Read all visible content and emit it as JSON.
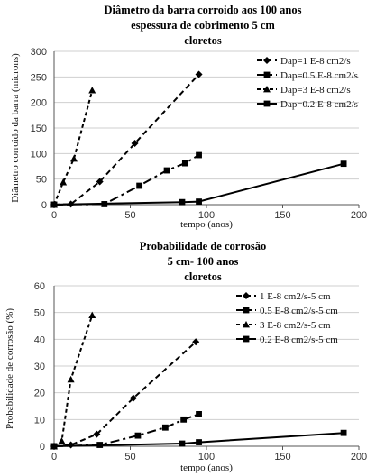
{
  "chart_data": [
    {
      "type": "line",
      "title": [
        "Diâmetro da barra corroido aos 100 anos",
        "espessura de cobrimento 5 cm",
        "cloretos"
      ],
      "xlabel": "tempo (anos)",
      "ylabel": "Diâmetro corroido da barra (microns)",
      "xlim": [
        0,
        200
      ],
      "ylim": [
        0,
        300
      ],
      "xticks": [
        0,
        50,
        100,
        150,
        200
      ],
      "yticks": [
        0,
        50,
        100,
        150,
        200,
        250,
        300
      ],
      "grid": "horizontal",
      "legend_position": "top-right",
      "series": [
        {
          "name": "Dap=1 E-8 cm2/s",
          "marker": "diamond",
          "dash": "6,4",
          "x": [
            0,
            11,
            30,
            53,
            95
          ],
          "y": [
            0,
            1,
            45,
            120,
            255
          ]
        },
        {
          "name": "Dap=0.5 E-8 cm2/s",
          "marker": "square",
          "dash": "10,4,3,4",
          "x": [
            0,
            33,
            56,
            74,
            86,
            95
          ],
          "y": [
            0,
            1,
            37,
            67,
            81,
            97
          ]
        },
        {
          "name": "Dap=3 E-8 cm2/s",
          "marker": "triangle",
          "dash": "4,3",
          "x": [
            0,
            6,
            13,
            25
          ],
          "y": [
            0,
            44,
            90,
            224
          ]
        },
        {
          "name": "Dap=0.2 E-8 cm2/s",
          "marker": "square",
          "dash": "",
          "x": [
            0,
            84,
            95,
            190
          ],
          "y": [
            0,
            5,
            6,
            80
          ]
        }
      ]
    },
    {
      "type": "line",
      "title": [
        "Probabilidade de corrosão",
        "5 cm- 100 anos",
        "cloretos"
      ],
      "xlabel": "tempo (anos)",
      "ylabel": "Probabilidade de corrosão (%)",
      "xlim": [
        0,
        200
      ],
      "ylim": [
        0,
        60
      ],
      "xticks": [
        0,
        50,
        100,
        150,
        200
      ],
      "yticks": [
        0,
        10,
        20,
        30,
        40,
        50,
        60
      ],
      "grid": "horizontal",
      "legend_position": "top-right",
      "series": [
        {
          "name": "1 E-8 cm2/s-5 cm",
          "marker": "diamond",
          "dash": "6,4",
          "x": [
            0,
            11,
            28,
            52,
            93
          ],
          "y": [
            0,
            0.5,
            4.5,
            18,
            39
          ]
        },
        {
          "name": "0.5 E-8 cm2/s-5 cm",
          "marker": "square",
          "dash": "10,4,3,4",
          "x": [
            0,
            30,
            55,
            73,
            85,
            95
          ],
          "y": [
            0,
            0.5,
            4,
            7,
            10,
            12
          ]
        },
        {
          "name": "3 E-8 cm2/s-5 cm",
          "marker": "triangle",
          "dash": "4,3",
          "x": [
            0,
            5,
            11,
            25
          ],
          "y": [
            0,
            2,
            25,
            49
          ]
        },
        {
          "name": "0.2 E-8 cm2/s-5 cm",
          "marker": "square",
          "dash": "",
          "x": [
            0,
            84,
            95,
            190
          ],
          "y": [
            0,
            1,
            1.5,
            5
          ]
        }
      ]
    }
  ]
}
